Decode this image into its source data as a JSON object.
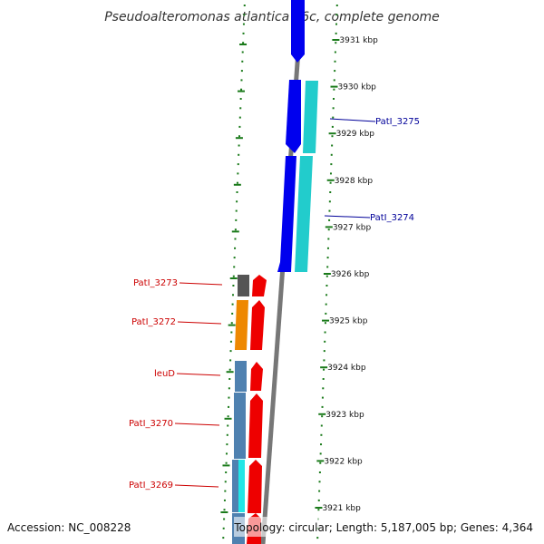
{
  "title": "Pseudoalteromonas atlantica T6c, complete genome",
  "footer": {
    "accession": "Accession: NC_008228",
    "topology": "Topology: circular; Length: 5,187,005 bp; Genes: 4,364"
  },
  "colors": {
    "tick_green": "#1a7a1a",
    "backbone": "#777777",
    "forward_blue": "#0000ee",
    "forward_cyan": "#22cccc",
    "reverse_red": "#ee0000",
    "steel": "#4f81b0",
    "orange": "#ee8800",
    "gray": "#555555",
    "label_red": "#cc0000",
    "label_blue": "#000099"
  },
  "ticks": [
    {
      "label": "3931 kbp"
    },
    {
      "label": "3930 kbp"
    },
    {
      "label": "3929 kbp"
    },
    {
      "label": "3928 kbp"
    },
    {
      "label": "3927 kbp"
    },
    {
      "label": "3926 kbp"
    },
    {
      "label": "3925 kbp"
    },
    {
      "label": "3924 kbp"
    },
    {
      "label": "3923 kbp"
    },
    {
      "label": "3922 kbp"
    },
    {
      "label": "3921 kbp"
    }
  ],
  "gene_labels": [
    {
      "text": "PatI_3275",
      "color": "blue"
    },
    {
      "text": "PatI_3274",
      "color": "blue"
    },
    {
      "text": "PatI_3273",
      "color": "red"
    },
    {
      "text": "PatI_3272",
      "color": "red"
    },
    {
      "text": "leuD",
      "color": "red"
    },
    {
      "text": "PatI_3270",
      "color": "red"
    },
    {
      "text": "PatI_3269",
      "color": "red"
    }
  ]
}
